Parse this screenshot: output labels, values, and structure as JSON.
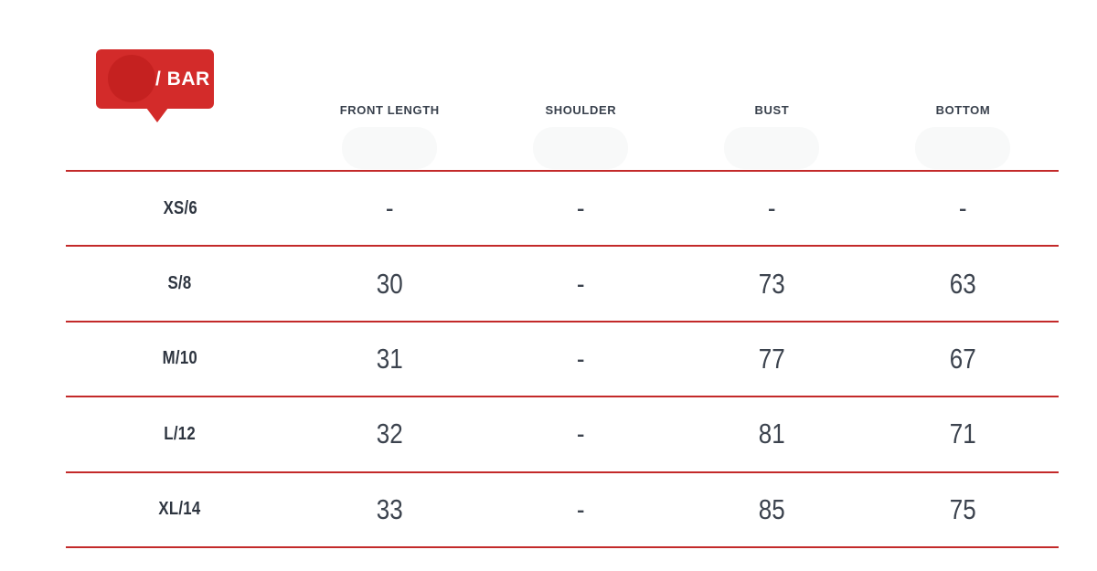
{
  "badge": {
    "label": "/ BAR",
    "background": "#d32b2a",
    "circle_color": "#c52120"
  },
  "table": {
    "line_color": "#c32a2a",
    "columns": [
      "FRONT LENGTH",
      "SHOULDER",
      "BUST",
      "BOTTOM"
    ],
    "rows": [
      {
        "size": "XS/6",
        "values": [
          "-",
          "-",
          "-",
          "-"
        ]
      },
      {
        "size": "S/8",
        "values": [
          "30",
          "-",
          "73",
          "63"
        ]
      },
      {
        "size": "M/10",
        "values": [
          "31",
          "-",
          "77",
          "67"
        ]
      },
      {
        "size": "L/12",
        "values": [
          "32",
          "-",
          "81",
          "71"
        ]
      },
      {
        "size": "XL/14",
        "values": [
          "33",
          "-",
          "85",
          "75"
        ]
      }
    ]
  }
}
